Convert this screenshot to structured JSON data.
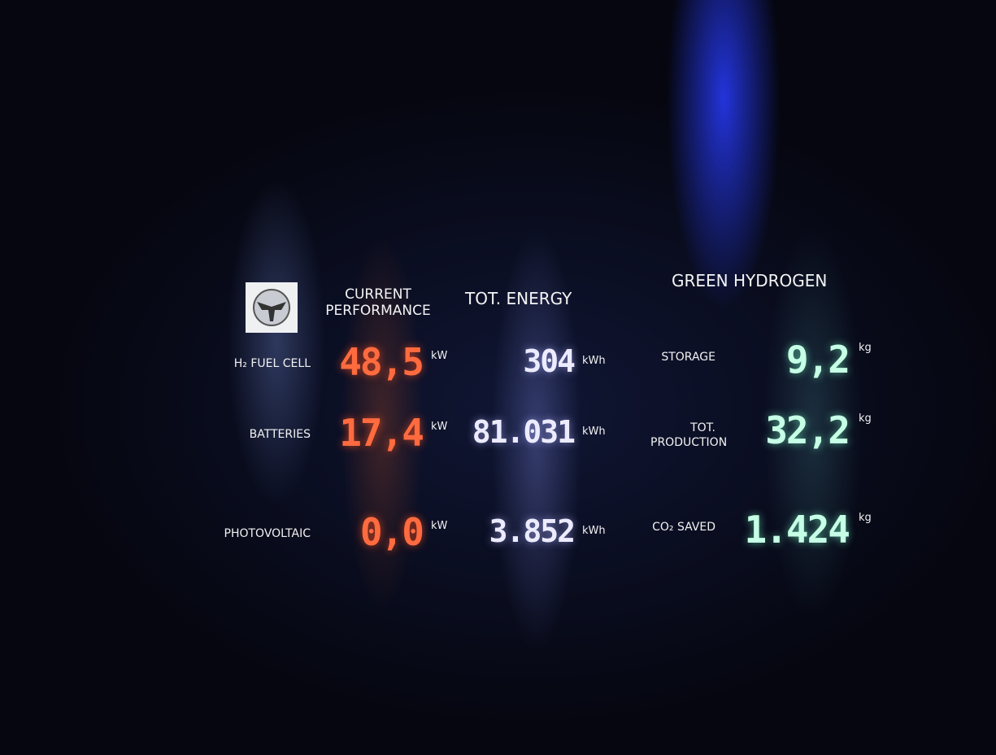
{
  "columns": [
    "CURRENT PERFORMANCE",
    "TOT. ENERGY",
    "GREEN HYDROGEN"
  ],
  "rows": [
    {
      "label": "H₂ FUEL CELL",
      "power": "48,5",
      "power_unit": "kW",
      "energy": "304",
      "energy_unit": "kWh",
      "hydrogen_label": "STORAGE",
      "hydrogen": "9,2",
      "hydrogen_unit": "kg"
    },
    {
      "label": "BATTERIES",
      "power": "17,4",
      "power_unit": "kW",
      "energy": "81.031",
      "energy_unit": "kWh",
      "hydrogen_label": "TOT. PRODUCTION",
      "hydrogen": "32,2",
      "hydrogen_unit": "kg"
    },
    {
      "label": "PHOTOVOLTAIC",
      "power": "0,0",
      "power_unit": "kW",
      "energy": "3.852",
      "energy_unit": "kWh",
      "hydrogen_label": "CO₂ SAVED",
      "hydrogen": "1.424",
      "hydrogen_unit": "kg"
    }
  ]
}
